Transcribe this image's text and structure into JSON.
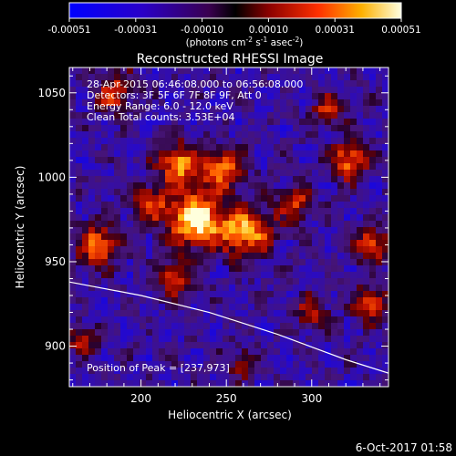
{
  "chart_data": {
    "type": "heatmap",
    "title": "Reconstructed RHESSI Image",
    "xlabel": "Heliocentric X (arcsec)",
    "ylabel": "Heliocentric Y (arcsec)",
    "xlim": [
      158,
      345
    ],
    "ylim": [
      876,
      1065
    ],
    "xticks": [
      200,
      250,
      300
    ],
    "yticks": [
      900,
      950,
      1000,
      1050
    ],
    "colorbar": {
      "min": -0.00051,
      "max": 0.00051,
      "ticks": [
        "-0.00051",
        "-0.00031",
        "-0.00010",
        "0.00010",
        "0.00031",
        "0.00051"
      ],
      "label_parts": [
        "(photons cm",
        "-2",
        " s",
        "-1",
        " asec",
        "-2",
        ")"
      ]
    },
    "peak": [
      237,
      973
    ],
    "limb_arc": [
      [
        158,
        938
      ],
      [
        200,
        930
      ],
      [
        240,
        920
      ],
      [
        280,
        907
      ],
      [
        320,
        892
      ],
      [
        345,
        884
      ]
    ],
    "sources": [
      {
        "x": 232,
        "y": 975,
        "w": 16,
        "amp": 1.0
      },
      {
        "x": 222,
        "y": 1008,
        "w": 12,
        "amp": 0.75
      },
      {
        "x": 262,
        "y": 968,
        "w": 15,
        "amp": 0.75
      },
      {
        "x": 175,
        "y": 960,
        "w": 12,
        "amp": 0.7
      },
      {
        "x": 248,
        "y": 1005,
        "w": 12,
        "amp": 0.65
      },
      {
        "x": 322,
        "y": 1010,
        "w": 11,
        "amp": 0.7
      },
      {
        "x": 335,
        "y": 960,
        "w": 10,
        "amp": 0.65
      },
      {
        "x": 220,
        "y": 940,
        "w": 10,
        "amp": 0.6
      },
      {
        "x": 290,
        "y": 985,
        "w": 10,
        "amp": 0.55
      },
      {
        "x": 335,
        "y": 925,
        "w": 10,
        "amp": 0.6
      },
      {
        "x": 185,
        "y": 1050,
        "w": 11,
        "amp": 0.55
      },
      {
        "x": 300,
        "y": 920,
        "w": 9,
        "amp": 0.5
      },
      {
        "x": 165,
        "y": 905,
        "w": 9,
        "amp": 0.45
      },
      {
        "x": 260,
        "y": 890,
        "w": 8,
        "amp": 0.45
      },
      {
        "x": 205,
        "y": 985,
        "w": 10,
        "amp": 0.55
      },
      {
        "x": 310,
        "y": 1040,
        "w": 9,
        "amp": 0.5
      }
    ]
  },
  "overlay": {
    "line1": "28-Apr-2015 06:46:08.000 to 06:56:08.000",
    "line2": "Detectors: 3F 5F 6F 7F 8F 9F, Att 0",
    "line3": "Energy Range: 6.0 - 12.0 keV",
    "line4": "Clean     Total counts: 3.53E+04",
    "peak_label": "Position of Peak = [237,973]"
  },
  "footer": {
    "date": "6-Oct-2017 01:58"
  },
  "colors": {
    "limb": "#ffffff",
    "axes": "#ffffff",
    "background": "#000000"
  }
}
